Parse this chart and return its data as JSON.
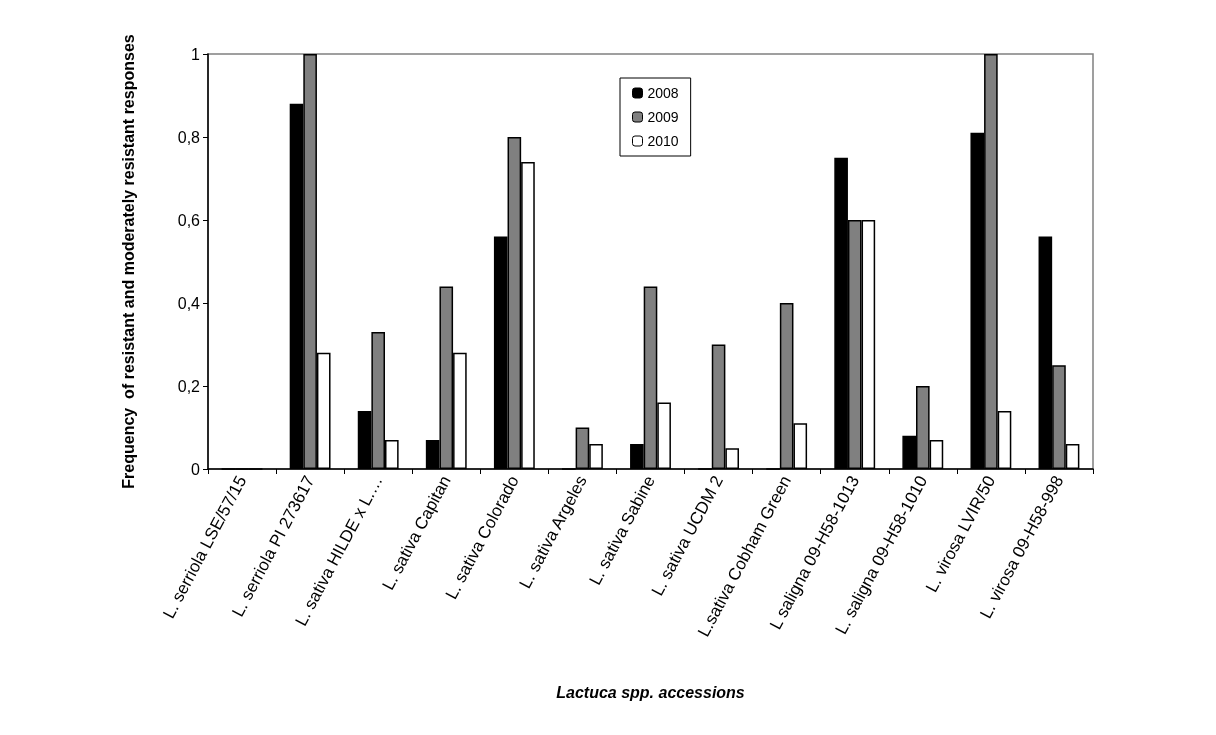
{
  "chart_data": {
    "type": "bar",
    "xlabel": "Lactuca spp. accessions",
    "ylabel": "Frequency  of resistant and moderately resistant responses",
    "categories": [
      "L. serriola LSE/57/15",
      "L. serriola PI 273617",
      "L. sativa HILDE x L.…",
      "L. sativa Capitan",
      "L. sativa Colorado",
      "L. sativa Argeles",
      "L. sativa Sabine",
      "L. sativa UCDM 2",
      "L.sativa Cobham Green",
      "L saligna 09-H58-1013",
      "L. saligna 09-H58-1010",
      "L. virosa LVIR/50",
      "L. virosa 09-H58-998"
    ],
    "series": [
      {
        "name": "2008",
        "color": "#000000",
        "values": [
          0,
          0.88,
          0.14,
          0.07,
          0.56,
          0,
          0.06,
          0,
          0,
          0.75,
          0.08,
          0.81,
          0.56
        ]
      },
      {
        "name": "2009",
        "color": "#808080",
        "values": [
          0,
          1.0,
          0.33,
          0.44,
          0.8,
          0.1,
          0.44,
          0.3,
          0.4,
          0.6,
          0.2,
          1.0,
          0.25
        ]
      },
      {
        "name": "2010",
        "color": "#ffffff",
        "values": [
          0,
          0.28,
          0.07,
          0.28,
          0.74,
          0.06,
          0.16,
          0.05,
          0.11,
          0.6,
          0.07,
          0.14,
          0.06
        ]
      }
    ],
    "ylim": [
      0,
      1
    ],
    "yticks": [
      0,
      {
        "value": 0.2,
        "label": "0,2"
      },
      {
        "value": 0.4,
        "label": "0,4"
      },
      {
        "value": 0.6,
        "label": "0,6"
      },
      {
        "value": 0.8,
        "label": "0,8"
      },
      1
    ],
    "grid": false,
    "legend": "top center"
  }
}
